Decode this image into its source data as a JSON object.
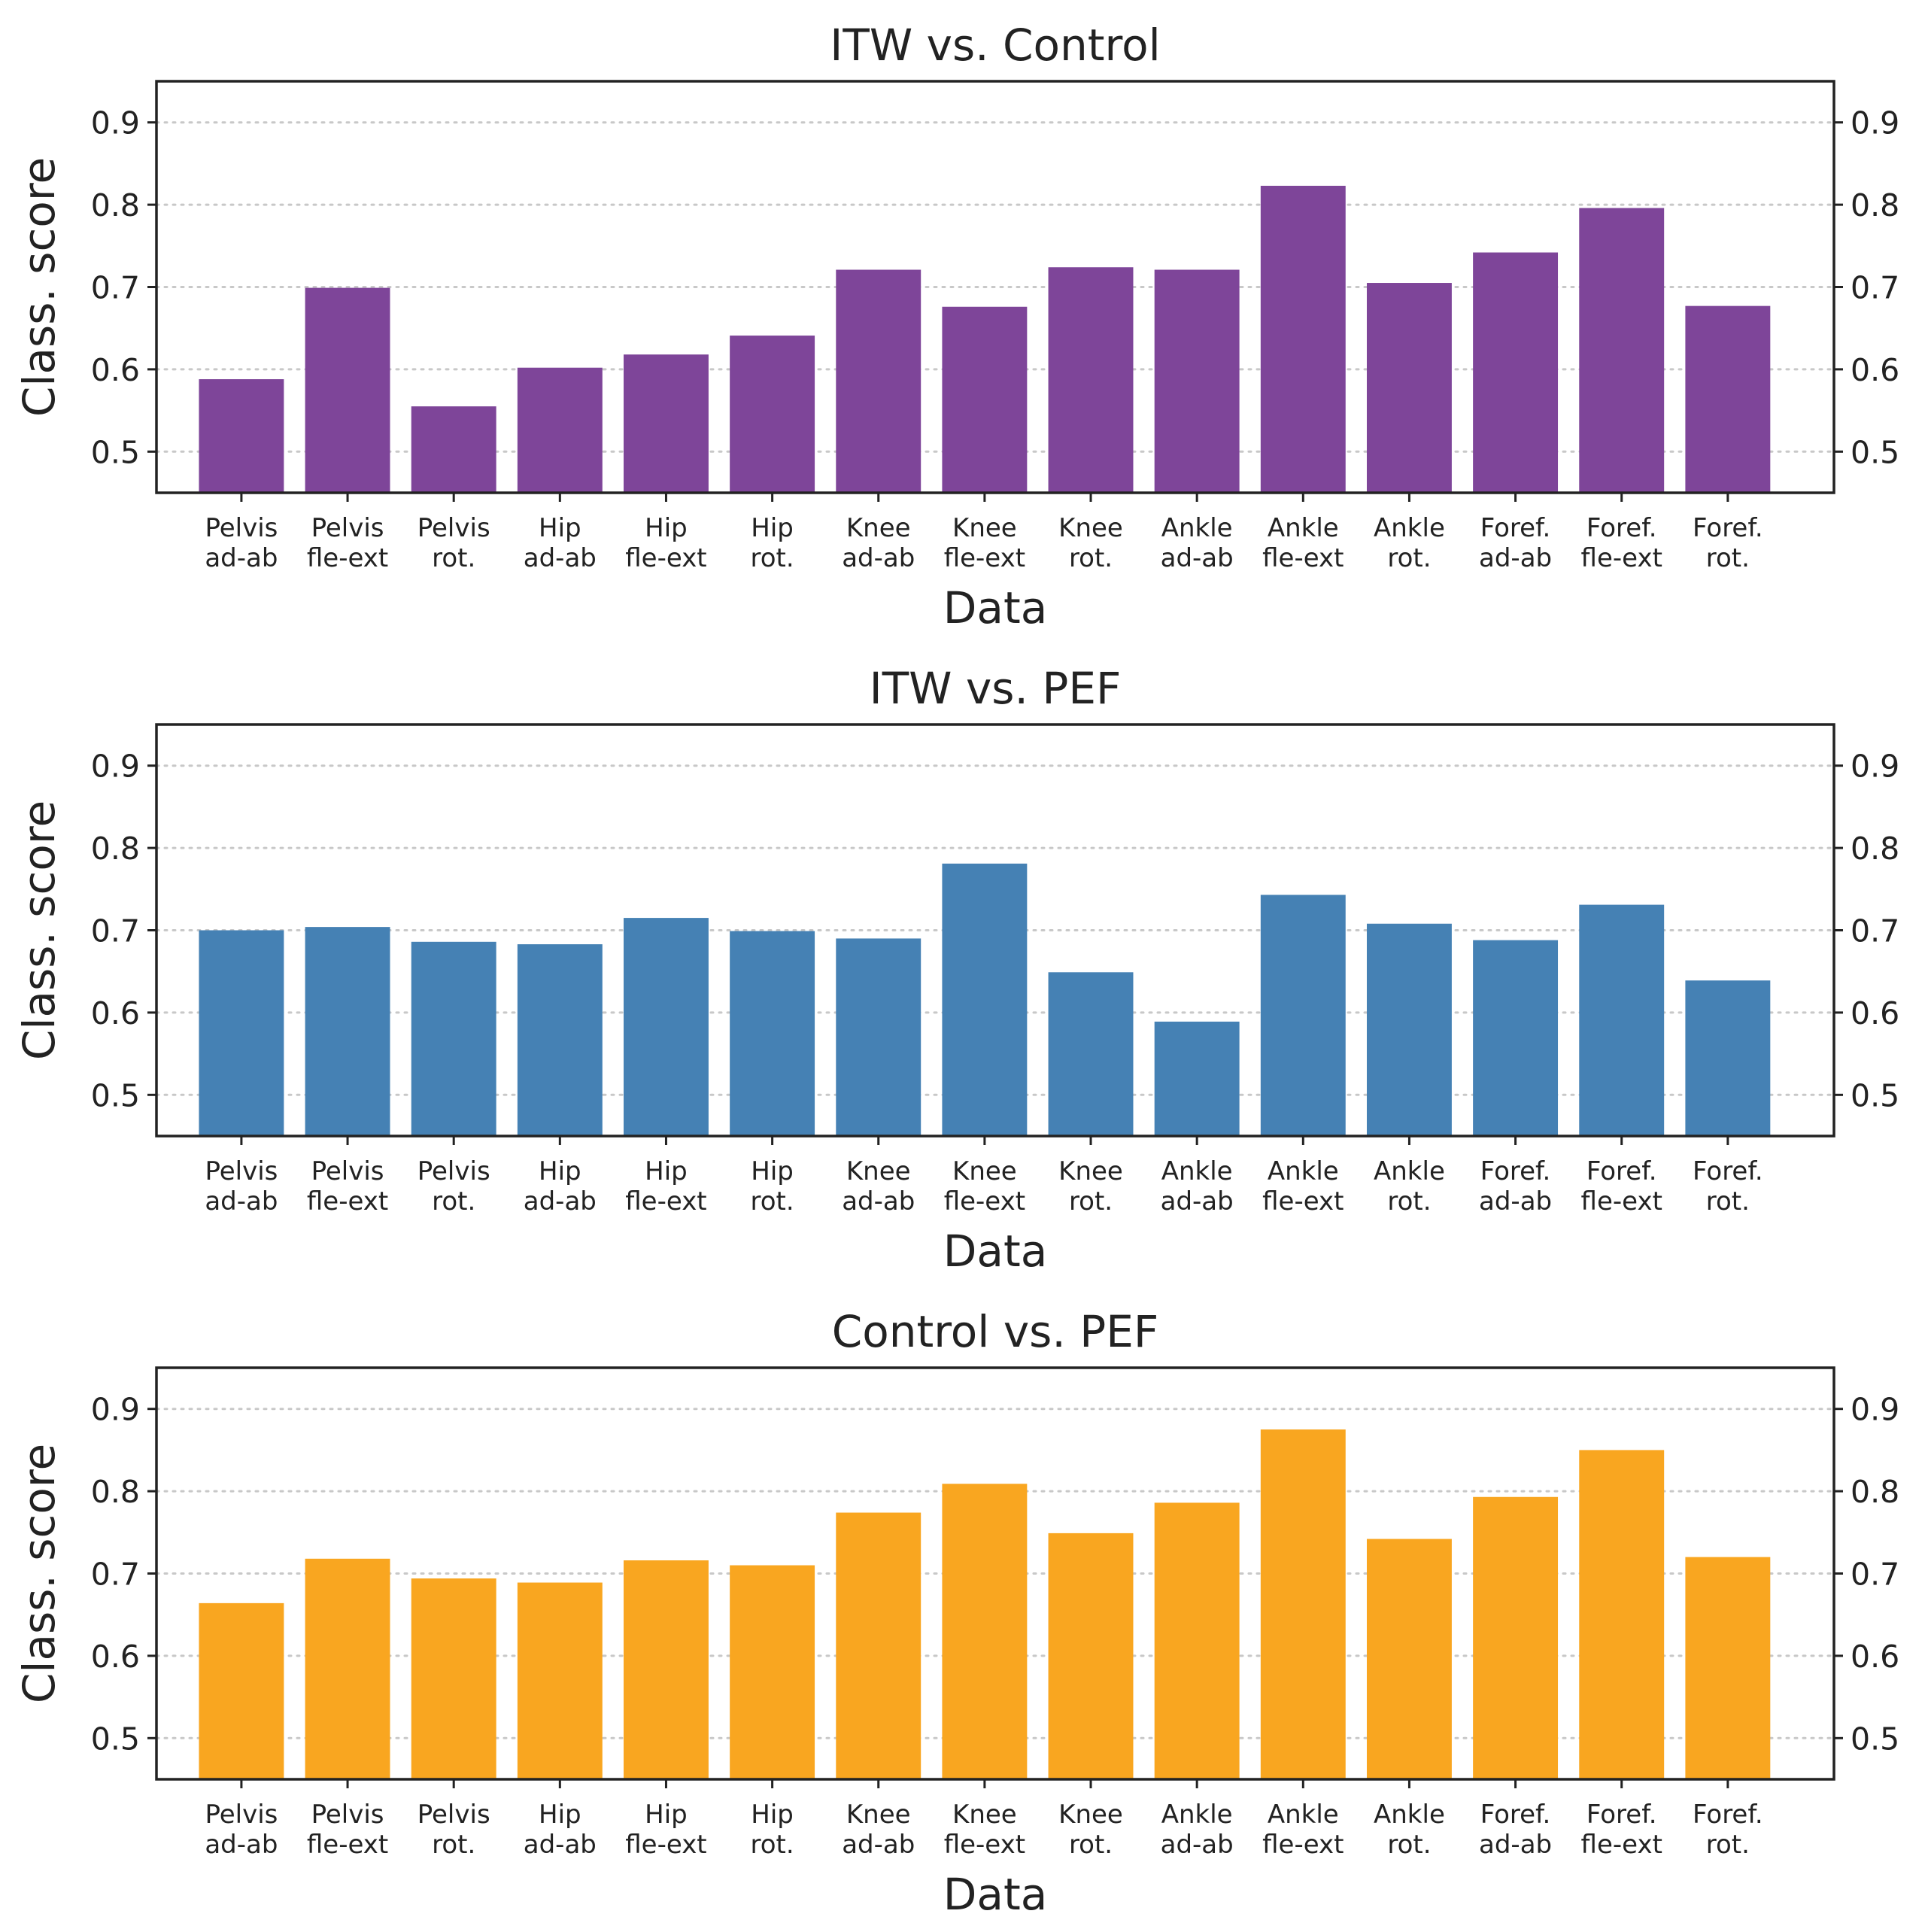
{
  "chart_data": [
    {
      "type": "bar",
      "title": "ITW vs. Control",
      "xlabel": "Data",
      "ylabel": "Class. score",
      "ylim": [
        0.45,
        0.95
      ],
      "yticks": [
        "0.5",
        "0.6",
        "0.7",
        "0.8",
        "0.9"
      ],
      "grid": "horizontal dotted",
      "color": "#7e4599",
      "categories": [
        [
          "Pelvis",
          "ad-ab"
        ],
        [
          "Pelvis",
          "fle-ext"
        ],
        [
          "Pelvis",
          "rot."
        ],
        [
          "Hip",
          "ad-ab"
        ],
        [
          "Hip",
          "fle-ext"
        ],
        [
          "Hip",
          "rot."
        ],
        [
          "Knee",
          "ad-ab"
        ],
        [
          "Knee",
          "fle-ext"
        ],
        [
          "Knee",
          "rot."
        ],
        [
          "Ankle",
          "ad-ab"
        ],
        [
          "Ankle",
          "fle-ext"
        ],
        [
          "Ankle",
          "rot."
        ],
        [
          "Foref.",
          "ad-ab"
        ],
        [
          "Foref.",
          "fle-ext"
        ],
        [
          "Foref.",
          "rot."
        ]
      ],
      "values": [
        0.588,
        0.699,
        0.555,
        0.602,
        0.618,
        0.641,
        0.721,
        0.676,
        0.724,
        0.721,
        0.823,
        0.705,
        0.742,
        0.796,
        0.677
      ]
    },
    {
      "type": "bar",
      "title": "ITW vs. PEF",
      "xlabel": "Data",
      "ylabel": "Class. score",
      "ylim": [
        0.45,
        0.95
      ],
      "yticks": [
        "0.5",
        "0.6",
        "0.7",
        "0.8",
        "0.9"
      ],
      "grid": "horizontal dotted",
      "color": "#4581b4",
      "categories": [
        [
          "Pelvis",
          "ad-ab"
        ],
        [
          "Pelvis",
          "fle-ext"
        ],
        [
          "Pelvis",
          "rot."
        ],
        [
          "Hip",
          "ad-ab"
        ],
        [
          "Hip",
          "fle-ext"
        ],
        [
          "Hip",
          "rot."
        ],
        [
          "Knee",
          "ad-ab"
        ],
        [
          "Knee",
          "fle-ext"
        ],
        [
          "Knee",
          "rot."
        ],
        [
          "Ankle",
          "ad-ab"
        ],
        [
          "Ankle",
          "fle-ext"
        ],
        [
          "Ankle",
          "rot."
        ],
        [
          "Foref.",
          "ad-ab"
        ],
        [
          "Foref.",
          "fle-ext"
        ],
        [
          "Foref.",
          "rot."
        ]
      ],
      "values": [
        0.7,
        0.704,
        0.686,
        0.683,
        0.715,
        0.699,
        0.69,
        0.781,
        0.649,
        0.589,
        0.743,
        0.708,
        0.688,
        0.731,
        0.639
      ]
    },
    {
      "type": "bar",
      "title": "Control vs. PEF",
      "xlabel": "Data",
      "ylabel": "Class. score",
      "ylim": [
        0.45,
        0.95
      ],
      "yticks": [
        "0.5",
        "0.6",
        "0.7",
        "0.8",
        "0.9"
      ],
      "grid": "horizontal dotted",
      "color": "#f9a620",
      "categories": [
        [
          "Pelvis",
          "ad-ab"
        ],
        [
          "Pelvis",
          "fle-ext"
        ],
        [
          "Pelvis",
          "rot."
        ],
        [
          "Hip",
          "ad-ab"
        ],
        [
          "Hip",
          "fle-ext"
        ],
        [
          "Hip",
          "rot."
        ],
        [
          "Knee",
          "ad-ab"
        ],
        [
          "Knee",
          "fle-ext"
        ],
        [
          "Knee",
          "rot."
        ],
        [
          "Ankle",
          "ad-ab"
        ],
        [
          "Ankle",
          "fle-ext"
        ],
        [
          "Ankle",
          "rot."
        ],
        [
          "Foref.",
          "ad-ab"
        ],
        [
          "Foref.",
          "fle-ext"
        ],
        [
          "Foref.",
          "rot."
        ]
      ],
      "values": [
        0.664,
        0.718,
        0.694,
        0.689,
        0.716,
        0.71,
        0.774,
        0.809,
        0.749,
        0.786,
        0.875,
        0.742,
        0.793,
        0.85,
        0.72
      ]
    }
  ]
}
